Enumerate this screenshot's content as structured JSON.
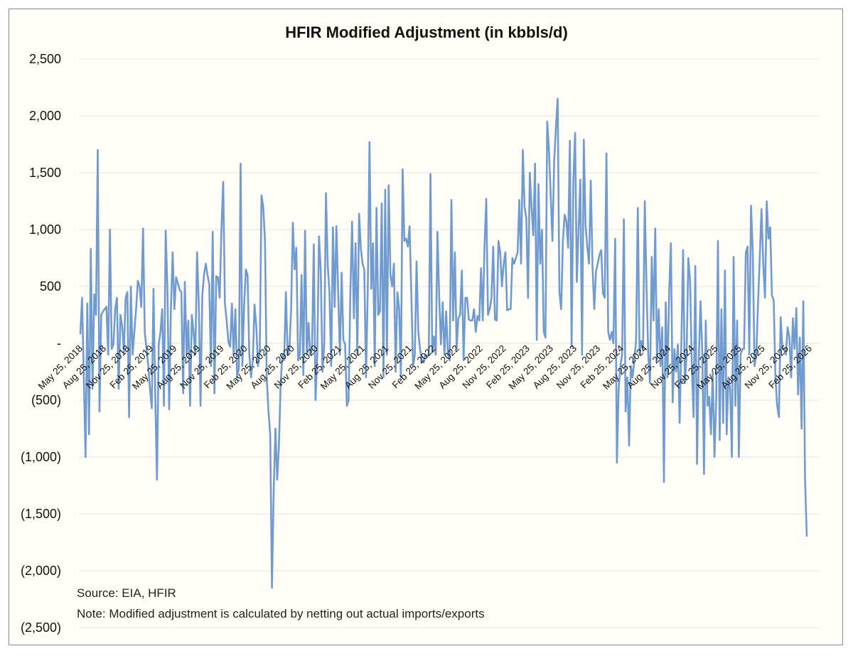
{
  "chart_data": {
    "type": "line",
    "title": "HFIR Modified Adjustment (in kbbls/d)",
    "xlabel": "",
    "ylabel": "",
    "ylim": [
      -2500,
      2500
    ],
    "y_ticks": [
      2500,
      2000,
      1500,
      1000,
      500,
      0,
      -500,
      -1000,
      -1500,
      -2000,
      -2500
    ],
    "y_tick_labels": [
      "2,500",
      "2,000",
      "1,500",
      "1,000",
      "500",
      "-",
      "(500)",
      "(1,000)",
      "(1,500)",
      "(2,000)",
      "(2,500)"
    ],
    "x_start": "May 25, 2018",
    "x_end": "Feb 25, 2026",
    "x_tick_labels": [
      "May 25, 2018",
      "Aug 25, 2018",
      "Nov 25, 2018",
      "Feb 25, 2019",
      "May 25, 2019",
      "Aug 25, 2019",
      "Nov 25, 2019",
      "Feb 25, 2020",
      "May 25, 2020",
      "Aug 25, 2020",
      "Nov 25, 2020",
      "Feb 25, 2021",
      "May 25, 2021",
      "Aug 25, 2021",
      "Nov 25, 2021",
      "Feb 25, 2022",
      "May 25, 2022",
      "Aug 25, 2022",
      "Nov 25, 2022",
      "Feb 25, 2023",
      "May 25, 2023",
      "Aug 25, 2023",
      "Nov 25, 2023",
      "Feb 25, 2024",
      "May 25, 2024",
      "Aug 25, 2024",
      "Nov 25, 2024",
      "Feb 25, 2025",
      "May 25, 2025",
      "Aug 25, 2025",
      "Nov 25, 2025",
      "Feb 25, 2026"
    ],
    "grid": true,
    "legend": "none",
    "series_color": "#6f9bd1",
    "series": [
      {
        "values": [
          80,
          400,
          -300,
          -1000,
          350,
          -800,
          830,
          -400,
          430,
          250,
          1700,
          -600,
          250,
          280,
          300,
          320,
          -100,
          1000,
          -50,
          -10,
          300,
          400,
          -400,
          250,
          150,
          -80,
          400,
          450,
          -650,
          500,
          -100,
          100,
          300,
          550,
          500,
          320,
          1010,
          100,
          -50,
          -200,
          -400,
          -570,
          480,
          -450,
          -1200,
          -10,
          100,
          300,
          -550,
          990,
          480,
          -580,
          300,
          800,
          300,
          580,
          530,
          470,
          450,
          -440,
          540,
          -100,
          200,
          -550,
          250,
          100,
          -100,
          800,
          350,
          -550,
          420,
          600,
          700,
          600,
          520,
          -200,
          980,
          -440,
          590,
          580,
          400,
          1000,
          1420,
          350,
          200,
          10,
          -30,
          350,
          -100,
          300,
          -300,
          -220,
          1580,
          -200,
          320,
          650,
          600,
          -100,
          -300,
          -150,
          340,
          150,
          -200,
          -50,
          1300,
          1200,
          900,
          -300,
          -600,
          -800,
          -2150,
          -1300,
          -750,
          -1200,
          -900,
          -350,
          -100,
          -150,
          450,
          -100,
          -50,
          300,
          1060,
          650,
          840,
          -150,
          -100,
          600,
          -280,
          990,
          -100,
          180,
          -100,
          -50,
          870,
          -500,
          -100,
          940,
          650,
          -250,
          -10,
          1320,
          690,
          450,
          -200,
          1020,
          320,
          1030,
          450,
          -100,
          620,
          30,
          -10,
          -550,
          -500,
          450,
          1070,
          220,
          880,
          -100,
          1140,
          840,
          700,
          650,
          -300,
          480,
          1770,
          480,
          880,
          -200,
          1190,
          250,
          280,
          1230,
          -300,
          1350,
          -100,
          1390,
          600,
          500,
          700,
          -250,
          450,
          300,
          -300,
          1530,
          900,
          920,
          850,
          1030,
          430,
          -200,
          -100,
          720,
          100,
          -50,
          -150,
          -170,
          -100,
          -120,
          -100,
          1490,
          -80,
          60,
          -100,
          980,
          400,
          -10,
          360,
          -100,
          280,
          -100,
          -150,
          1260,
          200,
          800,
          -50,
          220,
          250,
          640,
          -150,
          400,
          400,
          210,
          200,
          200,
          300,
          100,
          240,
          200,
          660,
          200,
          850,
          1270,
          250,
          300,
          400,
          850,
          210,
          200,
          900,
          800,
          500,
          700,
          800,
          290,
          300,
          300,
          750,
          700,
          750,
          800,
          1260,
          700,
          1700,
          1200,
          1100,
          400,
          1500,
          1200,
          950,
          1580,
          30,
          1400,
          700,
          1000,
          100,
          50,
          1950,
          1700,
          1300,
          900,
          1600,
          1900,
          2150,
          450,
          300,
          900,
          1130,
          1070,
          840,
          1780,
          -30,
          1420,
          1850,
          540,
          1000,
          1440,
          -100,
          1790,
          1040,
          850,
          700,
          1430,
          680,
          300,
          630,
          700,
          780,
          820,
          440,
          400,
          1670,
          100,
          30,
          100,
          0,
          920,
          -1050,
          -400,
          -200,
          -100,
          1090,
          -600,
          -300,
          -900,
          -200,
          -300,
          -150,
          20,
          1190,
          -100,
          20,
          -50,
          1250,
          500,
          -100,
          -350,
          760,
          200,
          1010,
          -150,
          300,
          -200,
          140,
          -1220,
          360,
          -300,
          450,
          880,
          -520,
          -50,
          -250,
          -10,
          -700,
          0,
          820,
          -350,
          -100,
          750,
          550,
          -200,
          -650,
          680,
          -1060,
          -150,
          370,
          -80,
          -1150,
          200,
          -550,
          -470,
          -800,
          -250,
          -1000,
          -500,
          900,
          -850,
          300,
          -700,
          640,
          -800,
          -300,
          -400,
          -1000,
          760,
          -550,
          200,
          -1000,
          -100,
          -50,
          -50,
          800,
          850,
          -100,
          1210,
          800,
          -200,
          -100,
          350,
          750,
          1180,
          700,
          400,
          1250,
          920,
          1020,
          420,
          380,
          -300,
          -550,
          -650,
          230,
          -50,
          -50,
          -100,
          140,
          50,
          -300,
          220,
          -50,
          310,
          -450,
          50,
          -750,
          370,
          -1200,
          -1700
        ]
      }
    ],
    "annotations": [
      "Source: EIA, HFIR",
      "Note: Modified adjustment is calculated by netting out actual imports/exports"
    ]
  }
}
